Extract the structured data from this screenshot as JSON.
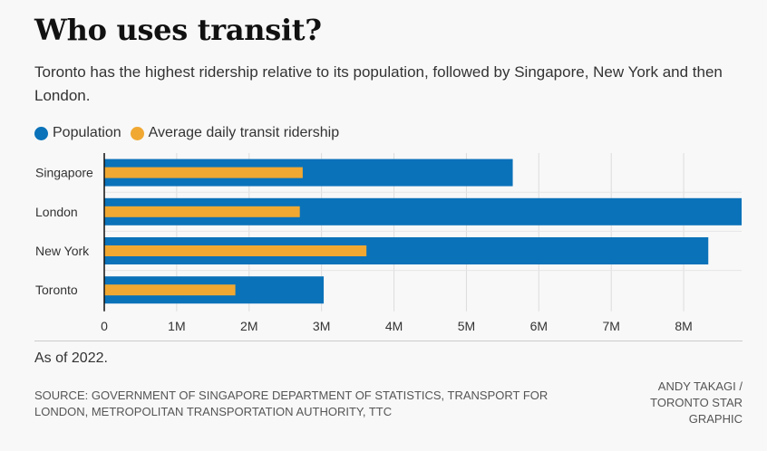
{
  "title": "Who uses transit?",
  "subtitle": "Toronto has the highest ridership relative to its population, followed by Singapore, New York and then London.",
  "note": "As of 2022.",
  "source": "SOURCE: GOVERNMENT OF SINGAPORE DEPARTMENT OF STATISTICS, TRANSPORT FOR LONDON, METROPOLITAN TRANSPORTATION AUTHORITY, TTC",
  "credit": "ANDY TAKAGI / TORONTO STAR GRAPHIC",
  "chart_data": {
    "type": "bar",
    "orientation": "horizontal",
    "categories": [
      "Singapore",
      "London",
      "New York",
      "Toronto"
    ],
    "series": [
      {
        "name": "Population",
        "color": "#0a72b9",
        "values": [
          5640000,
          8800000,
          8340000,
          3030000
        ]
      },
      {
        "name": "Average daily transit ridership",
        "color": "#f0a832",
        "values": [
          2740000,
          2700000,
          3620000,
          1810000
        ]
      }
    ],
    "xlim": [
      0,
      8800000
    ],
    "xticks": [
      0,
      1000000,
      2000000,
      3000000,
      4000000,
      5000000,
      6000000,
      7000000,
      8000000
    ],
    "xtick_labels": [
      "0",
      "1M",
      "2M",
      "3M",
      "4M",
      "5M",
      "6M",
      "7M",
      "8M"
    ],
    "grid": true,
    "legend_position": "top-left"
  }
}
